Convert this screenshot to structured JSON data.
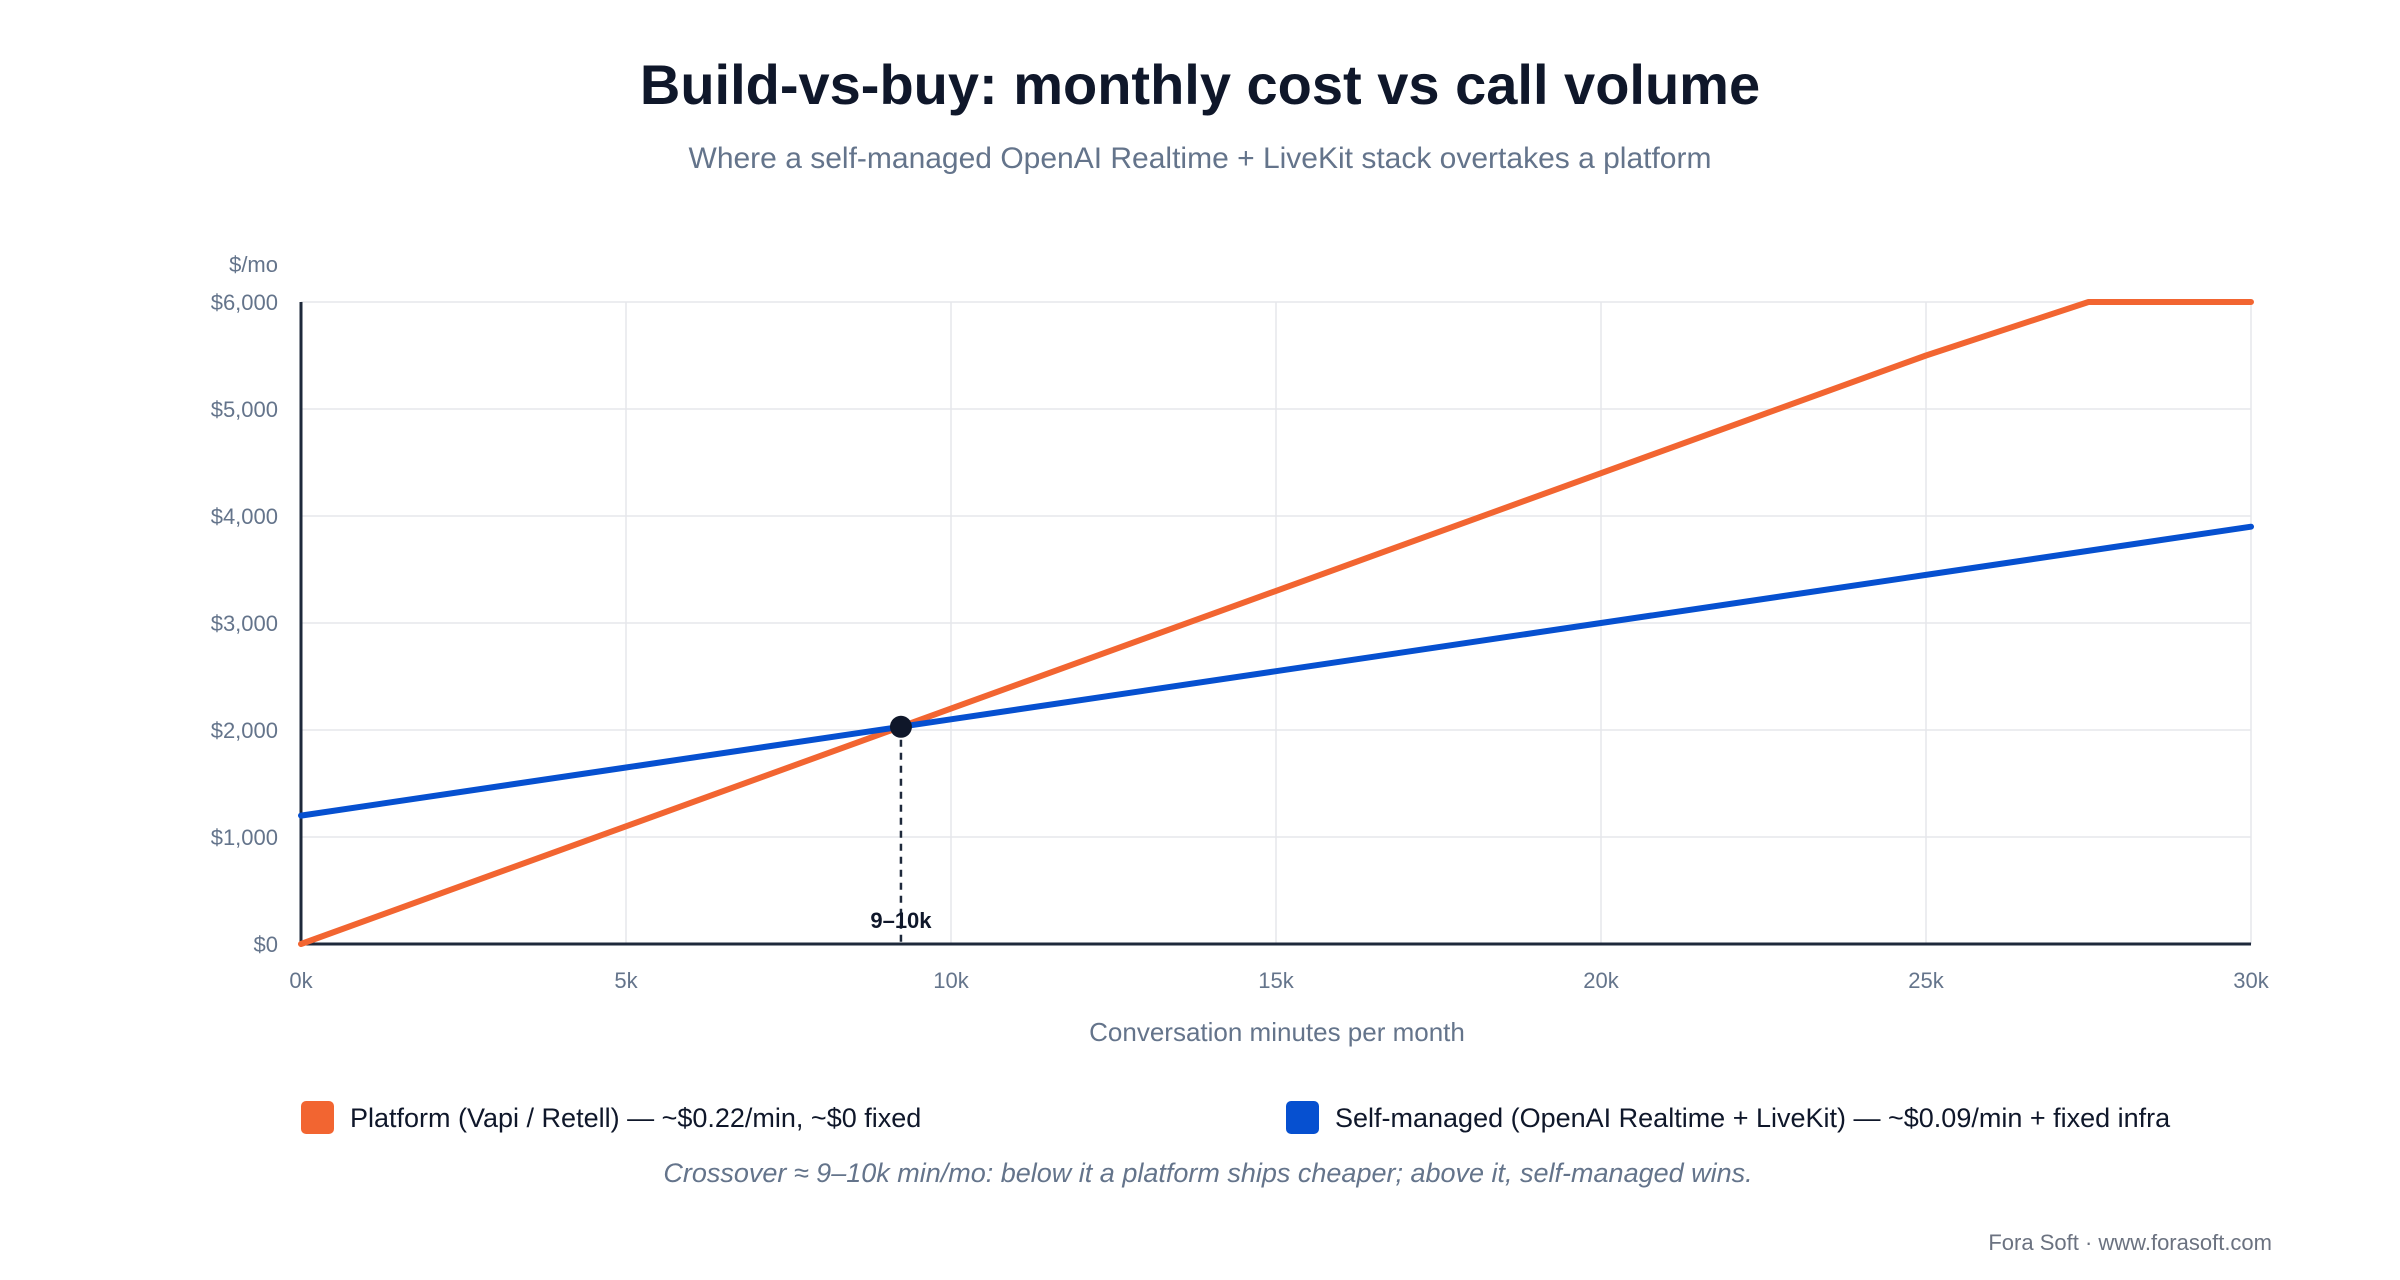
{
  "chart_data": {
    "type": "line",
    "title": "Build-vs-buy: monthly cost vs call volume",
    "subtitle": "Where a self-managed OpenAI Realtime + LiveKit stack overtakes a platform",
    "xlabel": "Conversation minutes per month",
    "ylabel": "$/mo",
    "xlim": [
      0,
      30000
    ],
    "ylim": [
      0,
      6000
    ],
    "x_ticks": [
      0,
      5000,
      10000,
      15000,
      20000,
      25000,
      30000
    ],
    "x_tick_labels": [
      "0k",
      "5k",
      "10k",
      "15k",
      "20k",
      "25k",
      "30k"
    ],
    "y_ticks": [
      0,
      1000,
      2000,
      3000,
      4000,
      5000,
      6000
    ],
    "y_tick_labels": [
      "$0",
      "$1,000",
      "$2,000",
      "$3,000",
      "$4,000",
      "$5,000",
      "$6,000"
    ],
    "grid": true,
    "legend_position": "bottom",
    "series": [
      {
        "name": "Platform (Vapi / Retell) — ~$0.22/min, ~$0 fixed",
        "color": "#f26531",
        "x": [
          0,
          5000,
          10000,
          15000,
          20000,
          25000,
          27500,
          30000
        ],
        "y": [
          0,
          1100,
          2200,
          3300,
          4400,
          5500,
          6000,
          6000
        ]
      },
      {
        "name": "Self-managed (OpenAI Realtime + LiveKit) — ~$0.09/min + fixed infra",
        "color": "#0650d0",
        "x": [
          0,
          5000,
          10000,
          15000,
          20000,
          25000,
          30000
        ],
        "y": [
          1200,
          1650,
          2100,
          2550,
          3000,
          3450,
          3900
        ]
      }
    ],
    "annotations": [
      {
        "type": "crossover-point",
        "x": 9230,
        "y": 2030,
        "label": "9–10k",
        "color": "#0f172a"
      }
    ],
    "footnote": "Crossover ≈ 9–10k min/mo: below it a platform ships cheaper; above it, self-managed wins."
  },
  "credit": "Fora Soft · www.forasoft.com"
}
